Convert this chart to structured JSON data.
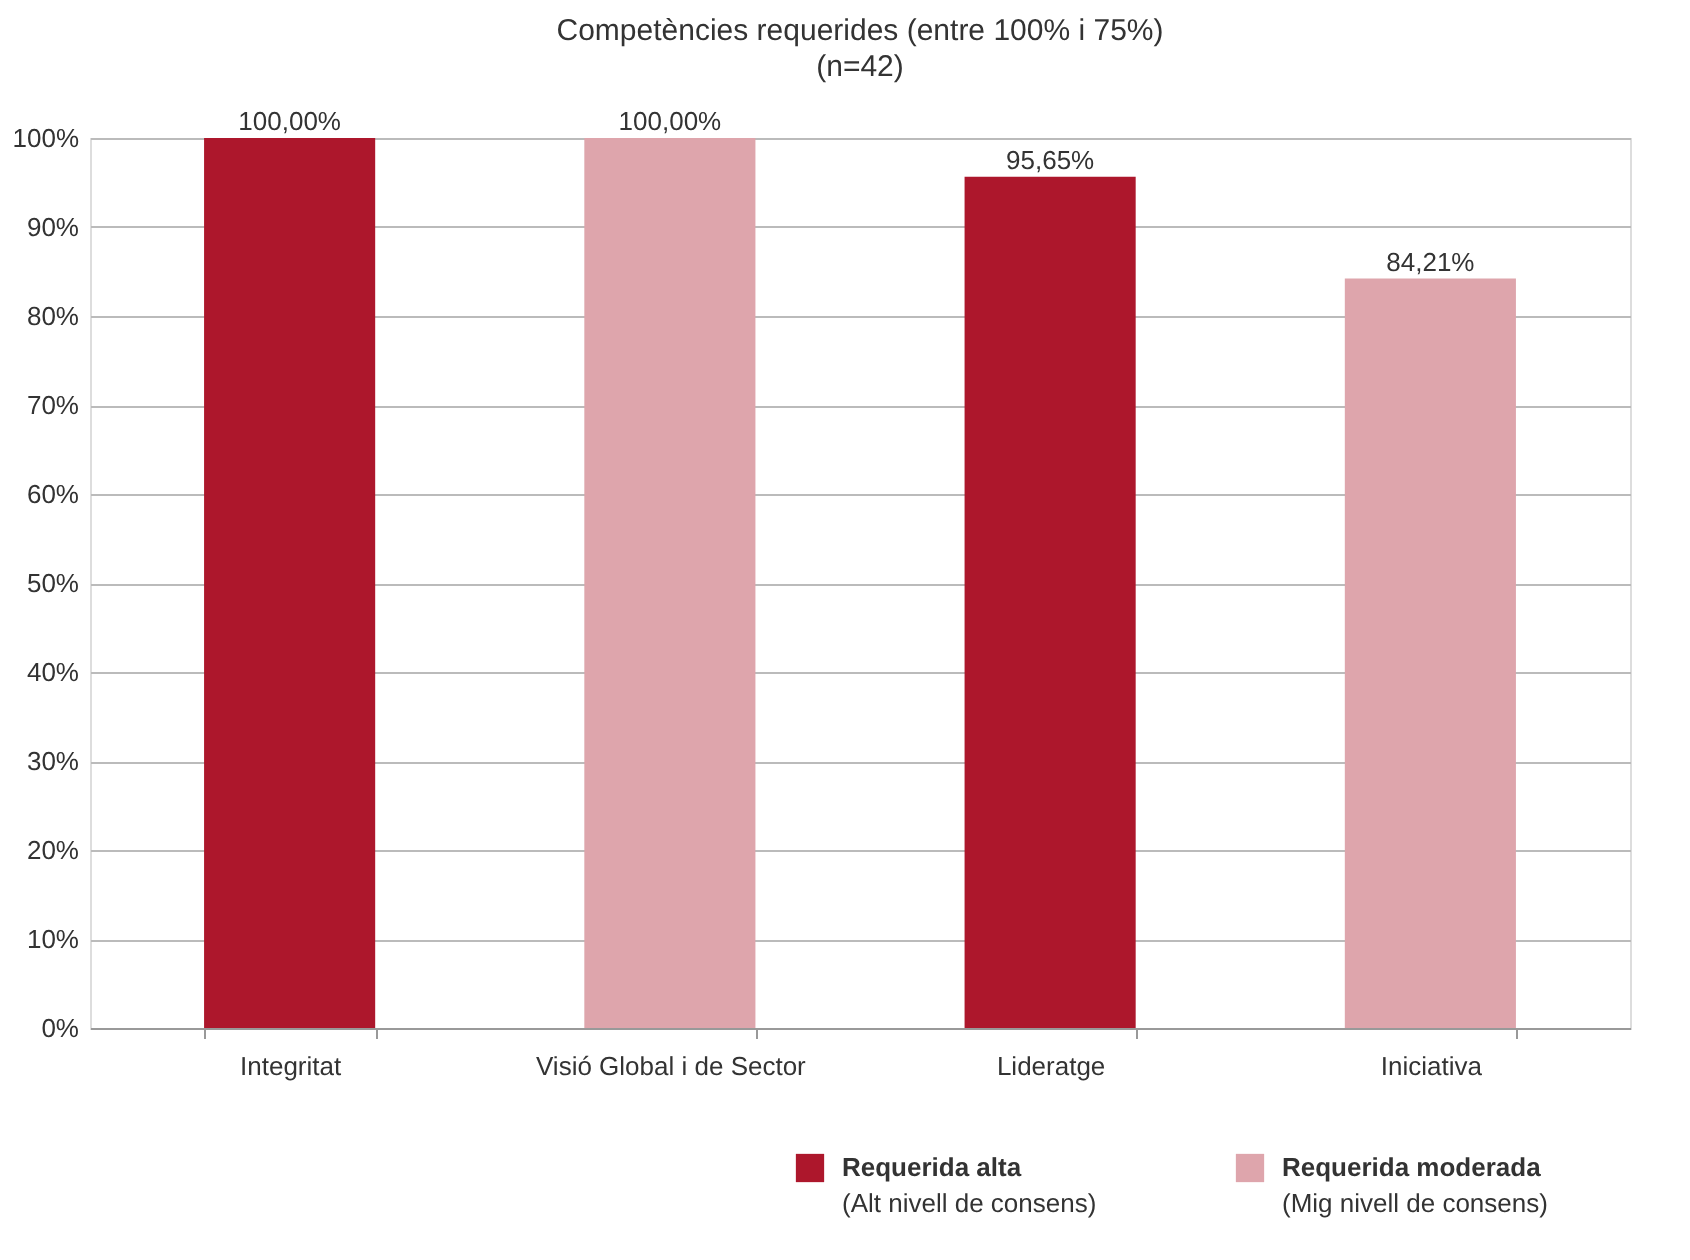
{
  "chart_data": {
    "type": "bar",
    "title": "Competències requerides (entre 100% i 75%)",
    "subtitle": "(n=42)",
    "categories": [
      "Integritat",
      "Visió Global i de Sector",
      "Lideratge",
      "Iniciativa"
    ],
    "series": [
      {
        "name": "Requerida alta\n(Alt nivell de consens)",
        "color": "#ad172c",
        "values": [
          100,
          null,
          95.65,
          null
        ],
        "value_labels": [
          "100,00%",
          null,
          "95,65%",
          null
        ]
      },
      {
        "name": "Requerida moderada\n(Mig nivell de consens)",
        "color": "#dea5ac",
        "values": [
          null,
          100,
          null,
          84.21
        ],
        "value_labels": [
          null,
          "100,00%",
          null,
          "84,21%"
        ]
      }
    ],
    "ylim": [
      0,
      100
    ],
    "yticks": [
      {
        "value": 0,
        "label": "0%"
      },
      {
        "value": 10,
        "label": "10%"
      },
      {
        "value": 20,
        "label": "20%"
      },
      {
        "value": 30,
        "label": "30%"
      },
      {
        "value": 40,
        "label": "40%"
      },
      {
        "value": 50,
        "label": "50%"
      },
      {
        "value": 60,
        "label": "60%"
      },
      {
        "value": 70,
        "label": "70%"
      },
      {
        "value": 80,
        "label": "80%"
      },
      {
        "value": 90,
        "label": "90%"
      },
      {
        "value": 100,
        "label": "100%"
      }
    ],
    "grid": "y",
    "legend": "bottom right"
  }
}
